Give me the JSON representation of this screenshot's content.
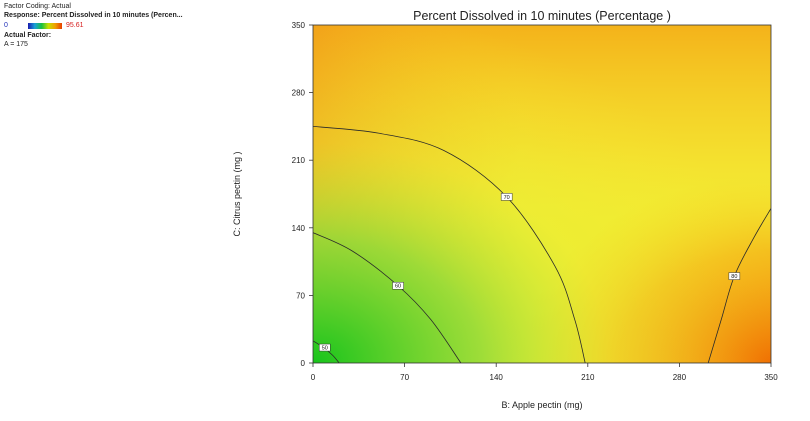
{
  "legend": {
    "coding": "Factor Coding: Actual",
    "response": "Response: Percent Dissolved in 10 minutes  (Percen...",
    "min": "0",
    "max": "95.61",
    "actual_factor_heading": "Actual Factor:",
    "actual_factor": "A = 175"
  },
  "chart_data": {
    "type": "contour",
    "title": "Percent Dissolved in 10 minutes  (Percentage )",
    "xlabel": "B: Apple pectin (mg)",
    "ylabel": "C: Citrus pectin (mg )",
    "xlim": [
      0,
      350
    ],
    "ylim": [
      0,
      350
    ],
    "xticks": [
      0,
      70,
      140,
      210,
      280,
      350
    ],
    "yticks": [
      0,
      70,
      140,
      210,
      280,
      350
    ],
    "contours": [
      {
        "level": 50,
        "label": "50",
        "points": [
          [
            0,
            23
          ],
          [
            8,
            16
          ],
          [
            15,
            8
          ],
          [
            20,
            0
          ]
        ],
        "label_at": [
          9,
          16
        ]
      },
      {
        "level": 60,
        "label": "60",
        "points": [
          [
            0,
            135
          ],
          [
            30,
            116
          ],
          [
            65,
            80
          ],
          [
            90,
            45
          ],
          [
            113,
            0
          ]
        ],
        "label_at": [
          65,
          80
        ]
      },
      {
        "level": 70,
        "label": "70",
        "points": [
          [
            0,
            245
          ],
          [
            50,
            238
          ],
          [
            100,
            220
          ],
          [
            148,
            172
          ],
          [
            185,
            100
          ],
          [
            200,
            45
          ],
          [
            208,
            0
          ]
        ],
        "label_at": [
          148,
          172
        ]
      },
      {
        "level": 80,
        "label": "80",
        "points": [
          [
            302,
            0
          ],
          [
            312,
            45
          ],
          [
            322,
            90
          ],
          [
            337,
            130
          ],
          [
            350,
            160
          ]
        ],
        "label_at": [
          322,
          90
        ]
      }
    ],
    "color_stops": [
      {
        "x": 0,
        "y": 0,
        "color": "#18c51c"
      },
      {
        "x": 0,
        "y": 350,
        "color": "#f3a514"
      },
      {
        "x": 350,
        "y": 350,
        "color": "#f7c808"
      },
      {
        "x": 350,
        "y": 0,
        "color": "#f06e00"
      },
      {
        "x": 200,
        "y": 100,
        "color": "#f2f03a"
      }
    ]
  }
}
